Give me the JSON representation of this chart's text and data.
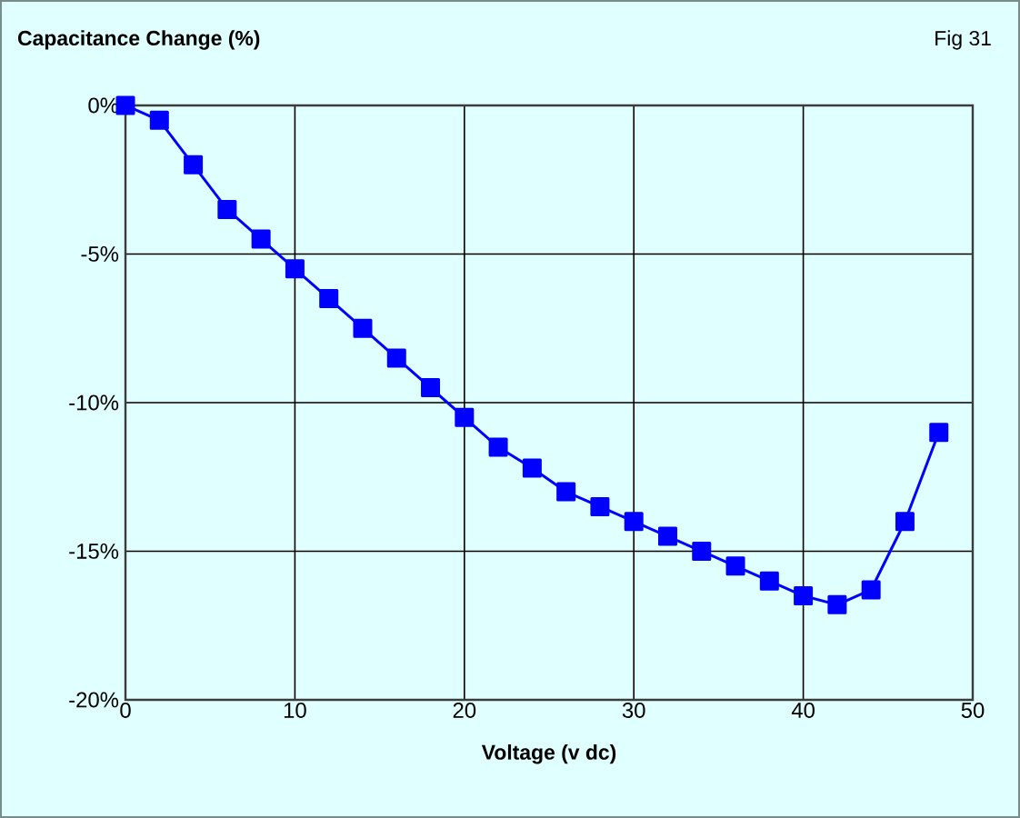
{
  "chart_data": {
    "type": "line",
    "ylabel": "Capacitance Change (%)",
    "xlabel": "Voltage (v dc)",
    "annotations": [
      "Fig 31"
    ],
    "x": [
      0,
      2,
      4,
      6,
      8,
      10,
      12,
      14,
      16,
      18,
      20,
      22,
      24,
      26,
      28,
      30,
      32,
      34,
      36,
      38,
      40,
      42,
      44,
      46,
      48
    ],
    "series": [
      {
        "color": "#0000ff",
        "values": [
          0,
          -0.5,
          -2,
          -3.5,
          -4.5,
          -5.5,
          -6.5,
          -7.5,
          -8.5,
          -9.5,
          -10.5,
          -11.5,
          -12.2,
          -13,
          -13.5,
          -14,
          -14.5,
          -15,
          -15.5,
          -16,
          -16.5,
          -16.8,
          -16.3,
          -14,
          -11
        ]
      }
    ],
    "xlim": [
      0,
      50
    ],
    "xticks": [
      0,
      10,
      20,
      30,
      40,
      50
    ],
    "ylim": [
      -20,
      0
    ],
    "yticks": [
      {
        "value": -20,
        "label": "-20%"
      },
      {
        "value": -15,
        "label": "-15%"
      },
      {
        "value": -10,
        "label": "-10%"
      },
      {
        "value": -5,
        "label": "-5%"
      },
      {
        "value": 0,
        "label": "0%"
      }
    ],
    "grid": true,
    "marker": "square",
    "line_style": "solid"
  }
}
